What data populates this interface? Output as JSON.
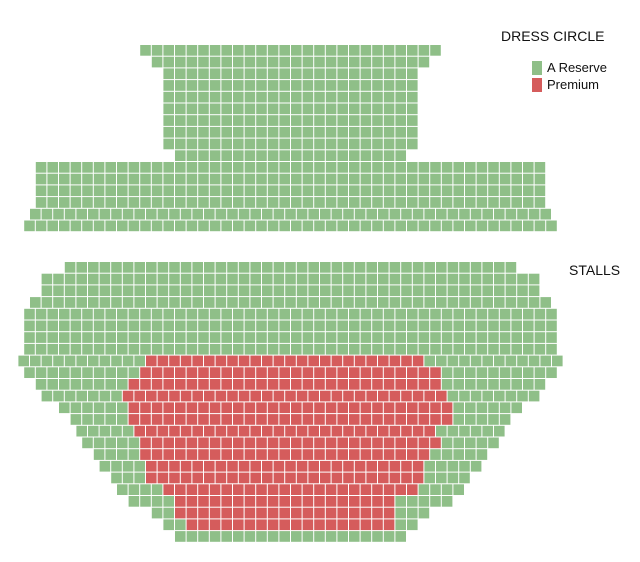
{
  "sections": {
    "dress_circle": {
      "label": "DRESS CIRCLE"
    },
    "stalls": {
      "label": "STALLS"
    }
  },
  "legend": {
    "items": [
      {
        "label": "A Reserve",
        "color": "#8fbf88"
      },
      {
        "label": "Premium",
        "color": "#d55c5c"
      }
    ]
  },
  "colors": {
    "a_reserve": "#8fbf88",
    "premium": "#d55c5c",
    "seat_outline": "#ffffff"
  },
  "seating": {
    "dress_circle_rows": [
      {
        "seats": 26,
        "category": "A Reserve"
      },
      {
        "seats": 24,
        "category": "A Reserve"
      },
      {
        "seats": 22,
        "category": "A Reserve"
      },
      {
        "seats": 22,
        "category": "A Reserve"
      },
      {
        "seats": 22,
        "category": "A Reserve"
      },
      {
        "seats": 22,
        "category": "A Reserve"
      },
      {
        "seats": 22,
        "category": "A Reserve"
      },
      {
        "seats": 22,
        "category": "A Reserve"
      },
      {
        "seats": 22,
        "category": "A Reserve"
      },
      {
        "seats": 20,
        "category": "A Reserve"
      },
      {
        "seats": 44,
        "category": "A Reserve"
      },
      {
        "seats": 44,
        "category": "A Reserve"
      },
      {
        "seats": 44,
        "category": "A Reserve"
      },
      {
        "seats": 44,
        "category": "A Reserve"
      },
      {
        "seats": 45,
        "category": "A Reserve"
      },
      {
        "seats": 46,
        "category": "A Reserve"
      }
    ],
    "stalls_rows": [
      {
        "seats": 39,
        "premium": 0
      },
      {
        "seats": 43,
        "premium": 0
      },
      {
        "seats": 43,
        "premium": 0
      },
      {
        "seats": 45,
        "premium": 0
      },
      {
        "seats": 46,
        "premium": 0
      },
      {
        "seats": 46,
        "premium": 0
      },
      {
        "seats": 46,
        "premium": 0
      },
      {
        "seats": 46,
        "premium": 0
      },
      {
        "seats": 47,
        "premium": 24
      },
      {
        "seats": 46,
        "premium": 26
      },
      {
        "seats": 44,
        "premium": 27
      },
      {
        "seats": 43,
        "premium": 28
      },
      {
        "seats": 40,
        "premium": 28
      },
      {
        "seats": 38,
        "premium": 28
      },
      {
        "seats": 37,
        "premium": 26
      },
      {
        "seats": 36,
        "premium": 26
      },
      {
        "seats": 34,
        "premium": 25
      },
      {
        "seats": 33,
        "premium": 24
      },
      {
        "seats": 31,
        "premium": 24
      },
      {
        "seats": 30,
        "premium": 22
      },
      {
        "seats": 28,
        "premium": 19
      },
      {
        "seats": 24,
        "premium": 19
      },
      {
        "seats": 22,
        "premium": 18
      },
      {
        "seats": 20,
        "premium": 0
      }
    ]
  }
}
